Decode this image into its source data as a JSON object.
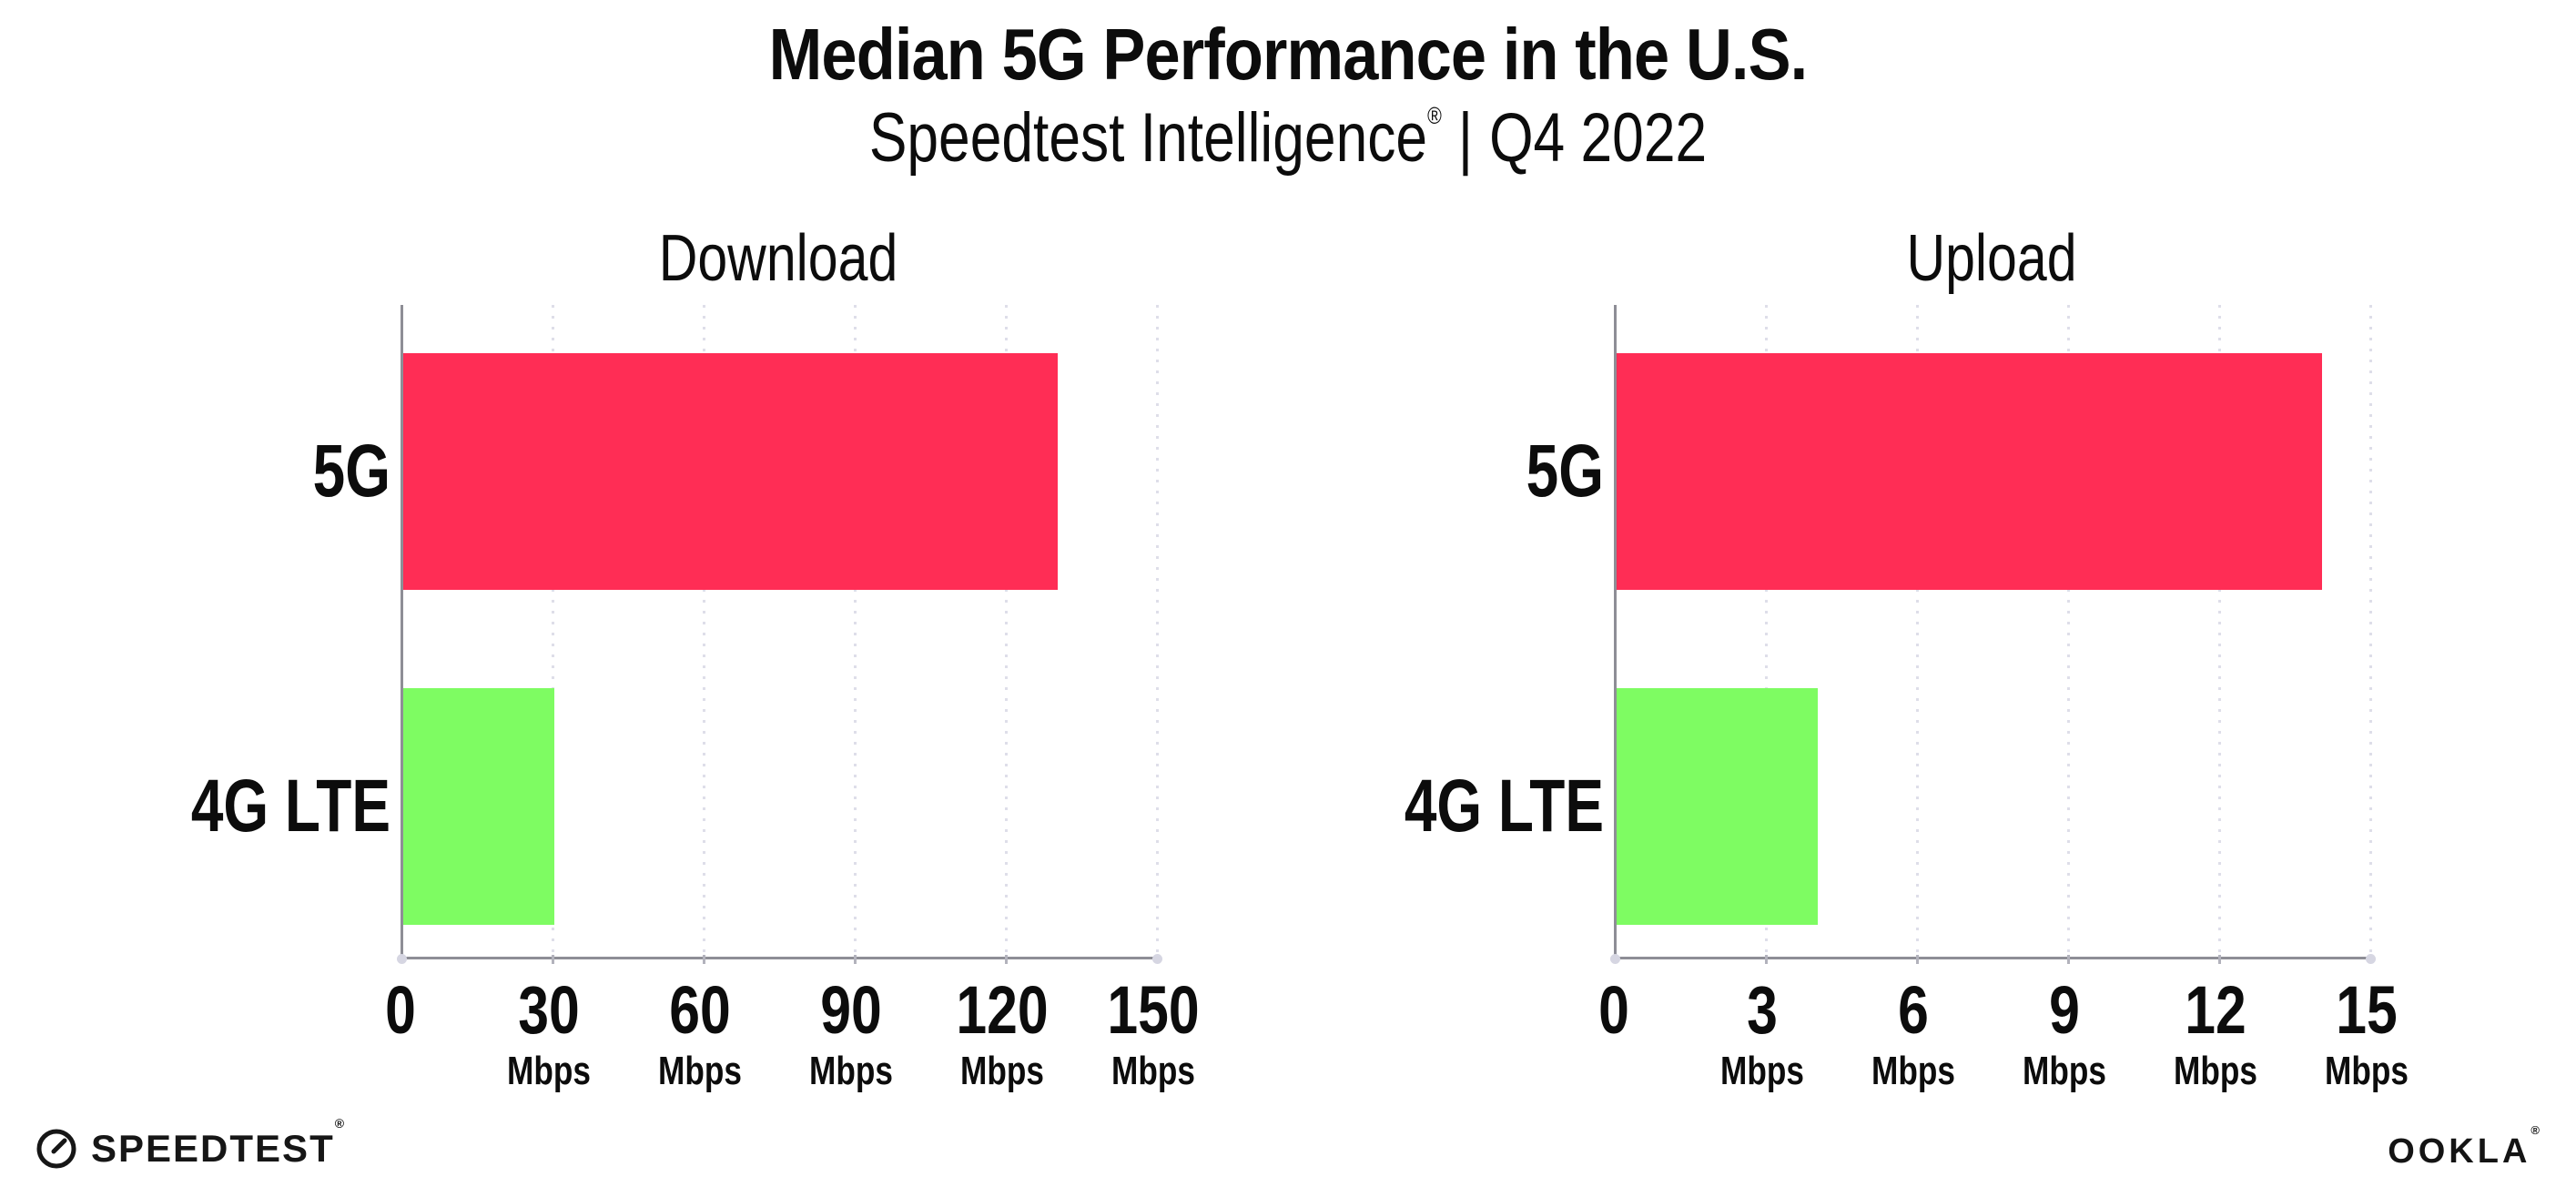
{
  "header": {
    "title": "Median 5G Performance in the U.S.",
    "subtitle_brand": "Speedtest Intelligence",
    "subtitle_reg": "®",
    "subtitle_divider": "|",
    "subtitle_period": "Q4 2022"
  },
  "chart_data": [
    {
      "type": "bar",
      "orientation": "horizontal",
      "title": "Download",
      "categories": [
        "5G",
        "4G LTE"
      ],
      "values": [
        130,
        30
      ],
      "unit": "Mbps",
      "xlim": [
        0,
        150
      ],
      "xticks": [
        0,
        30,
        60,
        90,
        120,
        150
      ],
      "bar_colors": [
        "#ff2d55",
        "#7efc62"
      ],
      "grid": "dotted-vertical",
      "legend": "none"
    },
    {
      "type": "bar",
      "orientation": "horizontal",
      "title": "Upload",
      "categories": [
        "5G",
        "4G LTE"
      ],
      "values": [
        14,
        4
      ],
      "unit": "Mbps",
      "xlim": [
        0,
        15
      ],
      "xticks": [
        0,
        3,
        6,
        9,
        12,
        15
      ],
      "bar_colors": [
        "#ff2d55",
        "#7efc62"
      ],
      "grid": "dotted-vertical",
      "legend": "none"
    }
  ],
  "footer": {
    "speedtest_label": "SPEEDTEST",
    "speedtest_reg": "®",
    "ookla_label": "OOKLA",
    "ookla_reg": "®"
  },
  "colors": {
    "bar_5g": "#ff2d55",
    "bar_4g_lte": "#7efc62",
    "gridline": "#dedee9",
    "axis": "#8e8e96",
    "text": "#0c0c0c",
    "background": "#ffffff"
  }
}
